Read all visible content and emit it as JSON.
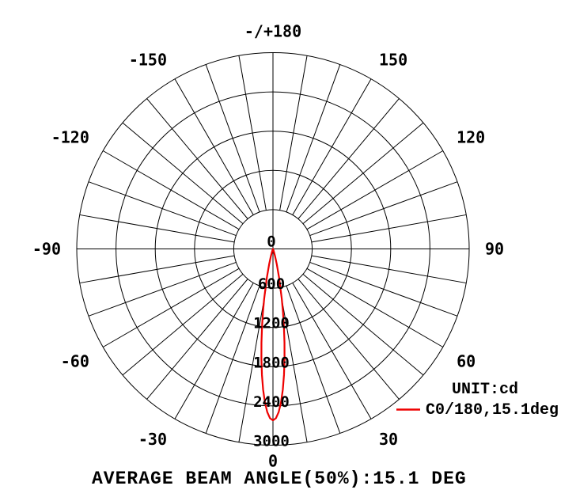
{
  "chart_data": {
    "type": "polar",
    "title": "",
    "unit_label": "UNIT:cd",
    "footer": "AVERAGE BEAM ANGLE(50%):15.1 DEG",
    "legend": {
      "entries": [
        {
          "label": "C0/180,15.1deg",
          "color": "#ee0000"
        }
      ]
    },
    "angle_axis": {
      "grid_step_deg": 10,
      "label_step_deg": 30,
      "labels": [
        {
          "deg": 180,
          "text": "-/+180"
        },
        {
          "deg": -150,
          "text": "-150"
        },
        {
          "deg": 150,
          "text": "150"
        },
        {
          "deg": -120,
          "text": "-120"
        },
        {
          "deg": 120,
          "text": "120"
        },
        {
          "deg": -90,
          "text": "-90"
        },
        {
          "deg": 90,
          "text": "90"
        },
        {
          "deg": -60,
          "text": "-60"
        },
        {
          "deg": 60,
          "text": "60"
        },
        {
          "deg": -30,
          "text": "-30"
        },
        {
          "deg": 30,
          "text": "30"
        },
        {
          "deg": 0,
          "text": "0"
        }
      ]
    },
    "radial_axis": {
      "unit": "cd",
      "ticks": [
        0,
        600,
        1200,
        1800,
        2400,
        3000
      ],
      "max": 3000
    },
    "series": [
      {
        "name": "C0/180",
        "beam_angle_50pct_deg": 15.1,
        "peak_cd": 2620,
        "color": "#ee0000",
        "symmetric_mirror": true,
        "points_deg_cd": [
          [
            0,
            2620
          ],
          [
            1,
            2588
          ],
          [
            2,
            2496
          ],
          [
            3,
            2349
          ],
          [
            4,
            2157
          ],
          [
            5,
            1933
          ],
          [
            6,
            1691
          ],
          [
            7,
            1444
          ],
          [
            8,
            1203
          ],
          [
            9,
            978
          ],
          [
            10,
            777
          ],
          [
            12,
            455
          ],
          [
            14,
            242
          ],
          [
            16,
            117
          ],
          [
            18,
            51
          ],
          [
            20,
            20
          ],
          [
            25,
            1
          ],
          [
            30,
            0
          ]
        ]
      }
    ]
  }
}
